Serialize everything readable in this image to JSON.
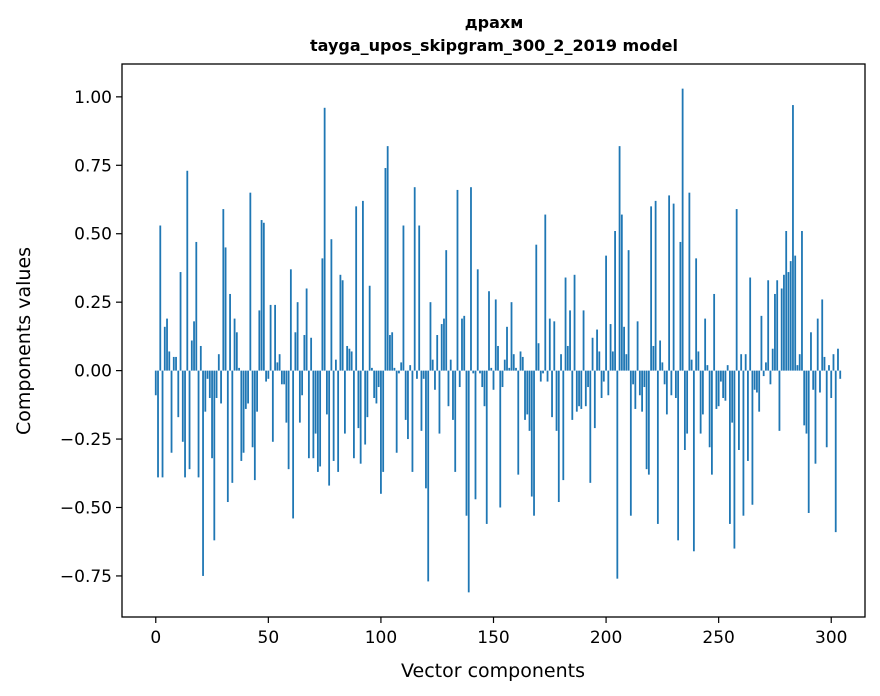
{
  "chart_data": {
    "type": "bar",
    "title": "драхм",
    "subtitle": "tayga_upos_skipgram_300_2_2019 model",
    "xlabel": "Vector components",
    "ylabel": "Components values",
    "xlim": [
      -15,
      315
    ],
    "ylim": [
      -0.9,
      1.12
    ],
    "xticks": [
      0,
      50,
      100,
      150,
      200,
      250,
      300
    ],
    "yticks": [
      -0.75,
      -0.5,
      -0.25,
      0.0,
      0.25,
      0.5,
      0.75,
      1.0
    ],
    "ytick_labels": [
      "−0.75",
      "−0.50",
      "−0.25",
      "0.00",
      "0.25",
      "0.50",
      "0.75",
      "1.00"
    ],
    "xtick_labels": [
      "0",
      "50",
      "100",
      "150",
      "200",
      "250",
      "300"
    ],
    "grid": false,
    "bar_color": "#1f77b4",
    "values": [
      -0.09,
      -0.39,
      0.53,
      -0.39,
      0.16,
      0.19,
      0.07,
      -0.3,
      0.05,
      0.05,
      -0.17,
      0.36,
      -0.26,
      -0.39,
      0.73,
      -0.36,
      0.11,
      0.18,
      0.47,
      -0.39,
      0.09,
      -0.75,
      -0.15,
      -0.03,
      -0.1,
      -0.32,
      -0.62,
      -0.1,
      0.06,
      -0.12,
      0.59,
      0.45,
      -0.48,
      0.28,
      -0.41,
      0.19,
      0.14,
      0.01,
      -0.33,
      -0.3,
      -0.14,
      -0.12,
      0.65,
      -0.28,
      -0.4,
      -0.15,
      0.22,
      0.55,
      0.54,
      -0.04,
      -0.03,
      0.24,
      -0.26,
      0.24,
      0.03,
      0.06,
      -0.05,
      -0.05,
      -0.19,
      -0.36,
      0.37,
      -0.54,
      0.14,
      0.25,
      -0.19,
      -0.09,
      0.13,
      0.3,
      -0.32,
      0.12,
      -0.32,
      -0.23,
      -0.37,
      -0.35,
      0.41,
      0.96,
      -0.16,
      -0.42,
      0.48,
      -0.33,
      0.04,
      -0.37,
      0.35,
      0.33,
      -0.23,
      0.09,
      0.08,
      0.07,
      -0.32,
      0.6,
      -0.21,
      -0.34,
      0.62,
      -0.27,
      -0.17,
      0.31,
      0.01,
      -0.1,
      -0.12,
      -0.06,
      -0.45,
      -0.37,
      0.74,
      0.82,
      0.13,
      0.14,
      0.01,
      -0.3,
      -0.01,
      0.03,
      0.53,
      -0.18,
      -0.25,
      0.02,
      -0.37,
      0.67,
      -0.03,
      0.53,
      -0.22,
      -0.03,
      -0.43,
      -0.77,
      0.25,
      0.04,
      -0.07,
      0.13,
      -0.23,
      0.17,
      0.19,
      0.44,
      -0.13,
      0.04,
      -0.18,
      -0.37,
      0.66,
      -0.06,
      0.19,
      0.2,
      -0.53,
      -0.81,
      0.67,
      -0.01,
      -0.47,
      0.37,
      -0.01,
      -0.06,
      -0.13,
      -0.56,
      0.29,
      0.01,
      -0.07,
      0.26,
      0.09,
      -0.5,
      -0.06,
      0.04,
      0.16,
      0.01,
      0.25,
      0.06,
      0.01,
      -0.38,
      0.07,
      0.05,
      -0.18,
      -0.16,
      -0.22,
      -0.46,
      -0.53,
      0.46,
      0.1,
      -0.04,
      -0.01,
      0.57,
      -0.04,
      0.19,
      -0.17,
      0.18,
      -0.22,
      -0.48,
      0.06,
      -0.4,
      0.34,
      0.09,
      0.22,
      -0.18,
      0.35,
      -0.15,
      -0.13,
      -0.14,
      0.22,
      -0.13,
      -0.06,
      -0.41,
      0.12,
      -0.21,
      0.15,
      0.07,
      -0.1,
      -0.04,
      0.42,
      -0.09,
      0.17,
      0.07,
      0.51,
      -0.76,
      0.82,
      0.57,
      0.16,
      0.06,
      0.44,
      -0.53,
      -0.05,
      -0.14,
      0.18,
      -0.09,
      -0.15,
      -0.06,
      -0.36,
      -0.38,
      0.6,
      0.09,
      0.62,
      -0.56,
      0.11,
      0.03,
      -0.05,
      -0.16,
      0.64,
      -0.09,
      0.61,
      -0.1,
      -0.62,
      0.47,
      1.03,
      -0.29,
      -0.23,
      0.65,
      0.04,
      -0.66,
      0.41,
      0.07,
      -0.23,
      -0.16,
      0.19,
      0.02,
      -0.28,
      -0.38,
      0.28,
      -0.14,
      -0.13,
      -0.04,
      -0.1,
      -0.11,
      0.02,
      -0.56,
      -0.19,
      -0.65,
      0.59,
      -0.29,
      0.06,
      -0.53,
      0.06,
      -0.33,
      0.34,
      -0.49,
      -0.07,
      -0.08,
      -0.15,
      0.2,
      -0.02,
      0.03,
      0.33,
      -0.05,
      0.08,
      0.28,
      0.33,
      -0.22,
      0.3,
      0.35,
      0.51,
      0.36,
      0.4,
      0.97,
      0.42,
      0.02,
      0.06,
      0.51,
      -0.2,
      -0.23,
      -0.52,
      0.14,
      -0.07,
      -0.34,
      0.19,
      -0.08,
      0.26,
      0.05,
      -0.28,
      0.02,
      -0.1,
      0.06,
      -0.59,
      0.08,
      -0.03
    ]
  }
}
